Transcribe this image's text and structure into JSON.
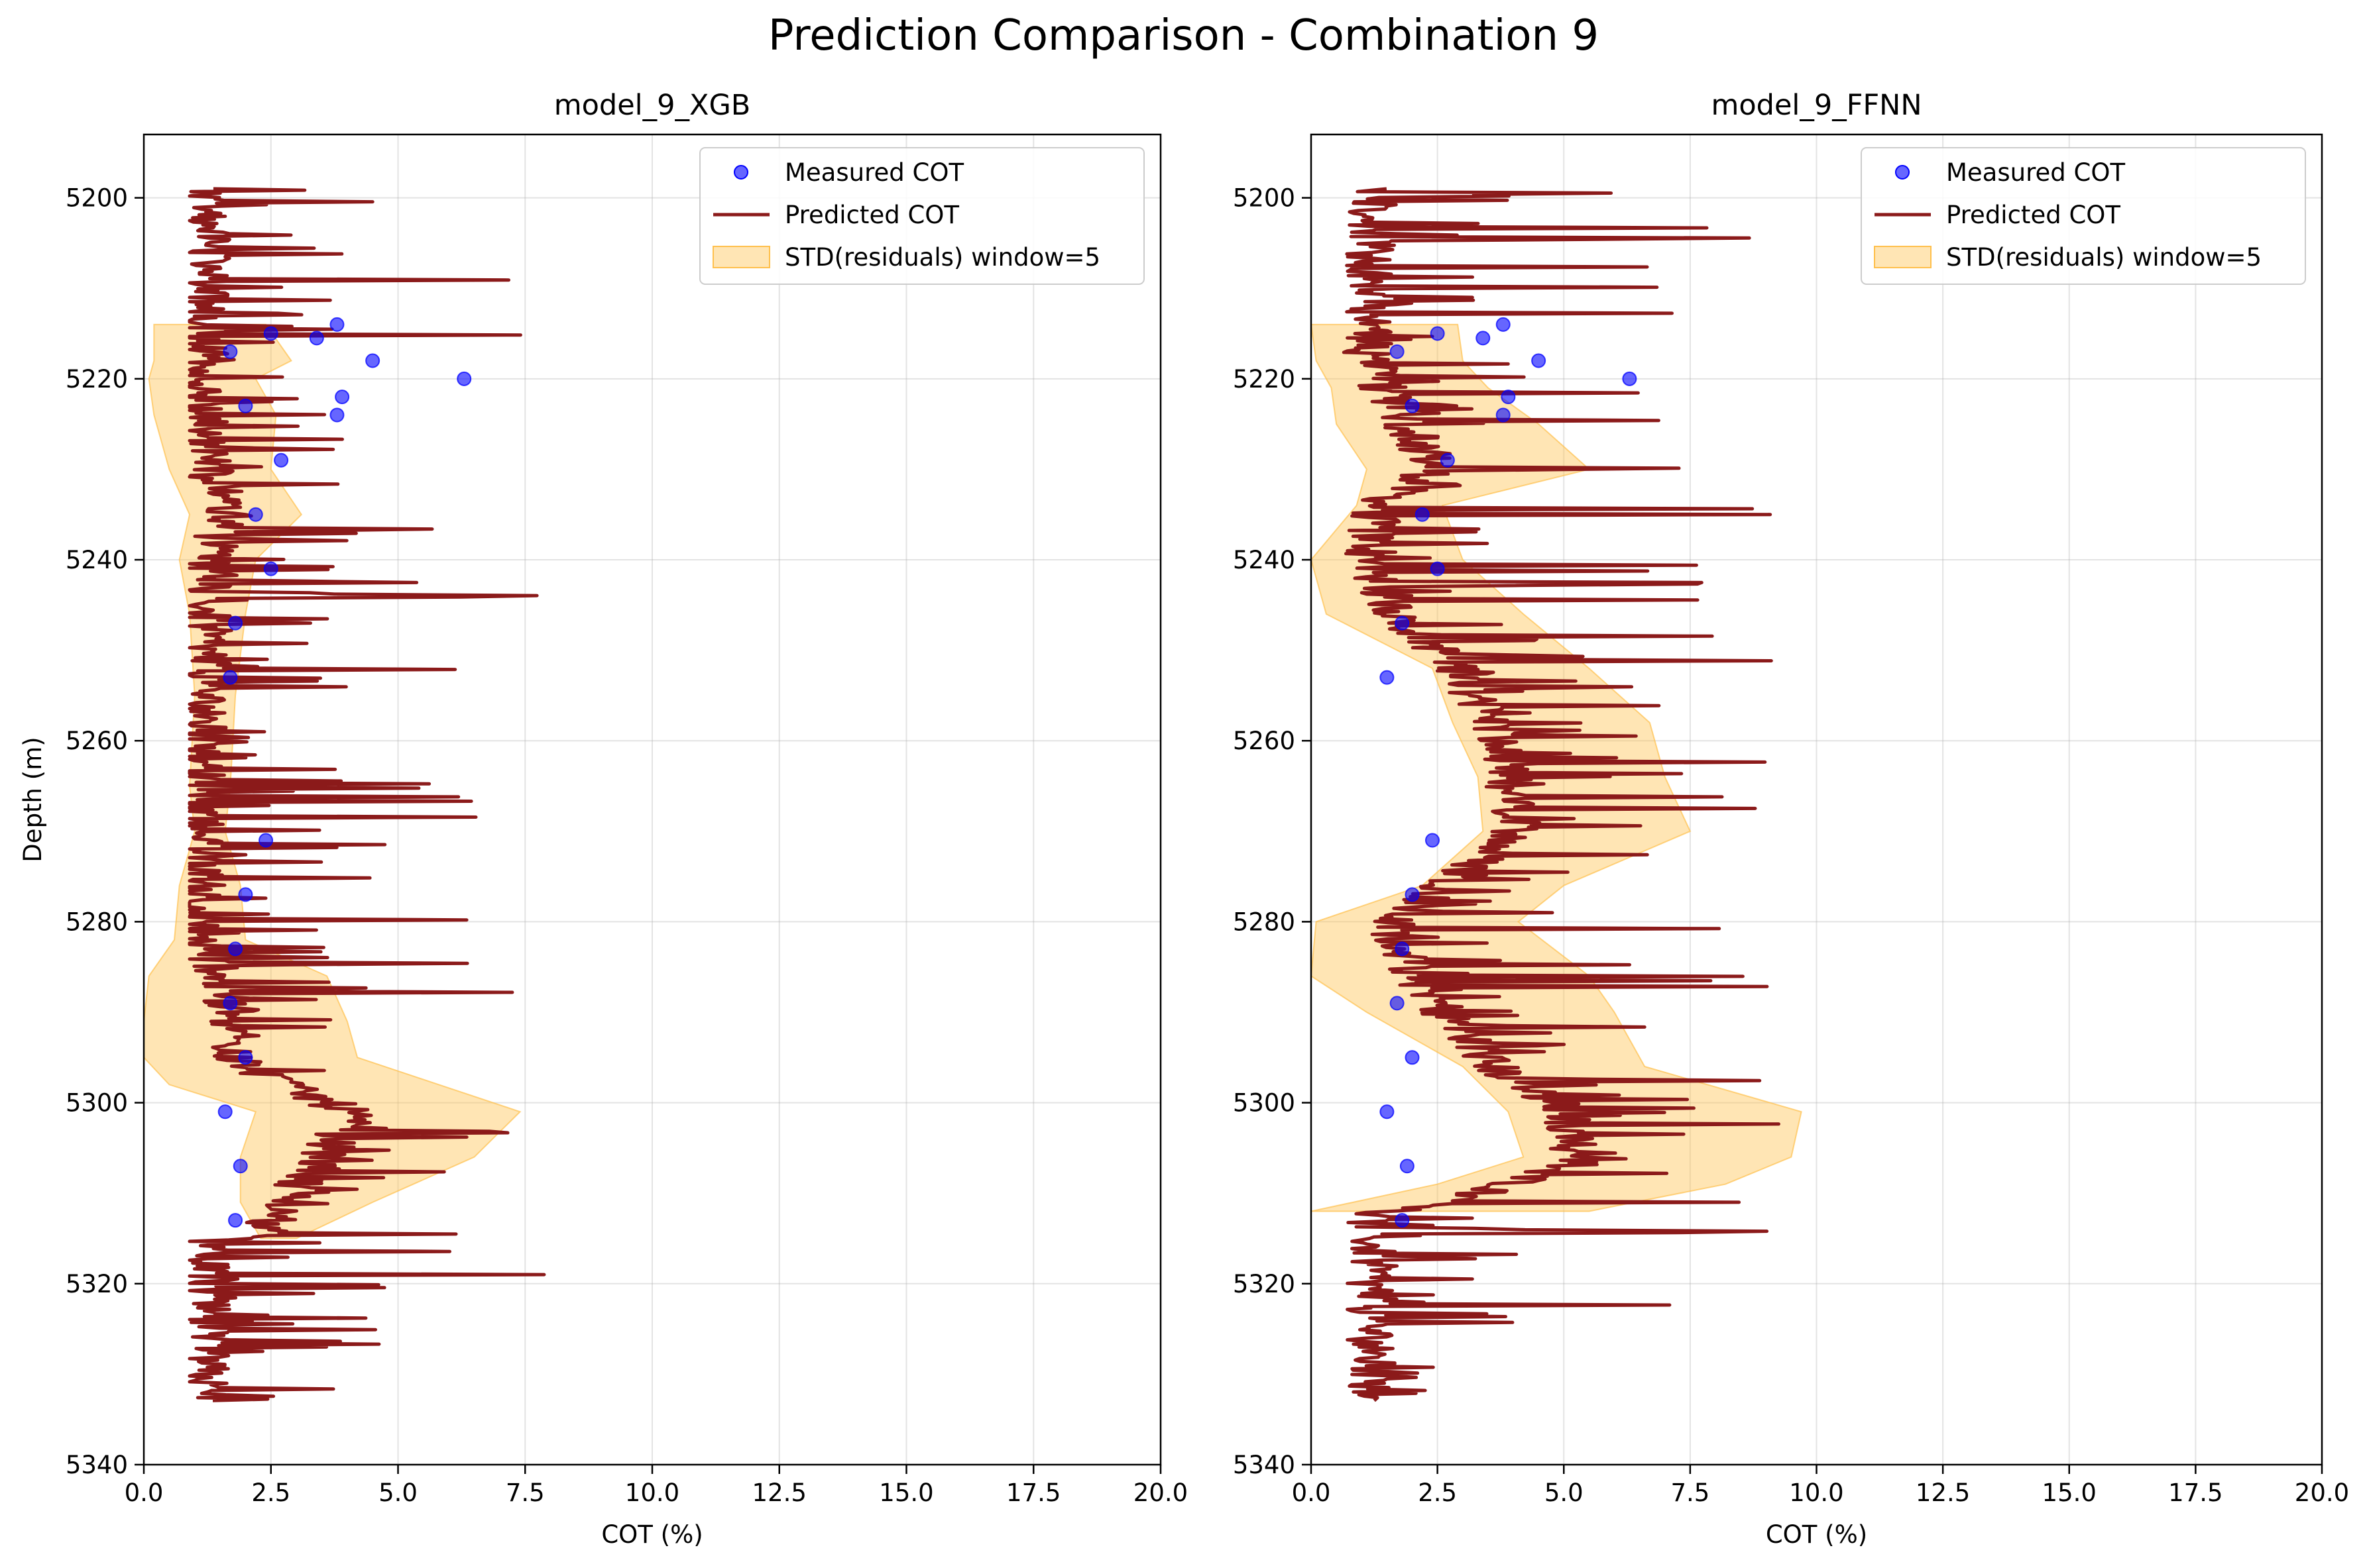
{
  "figure_title": "Prediction Comparison - Combination 9",
  "chart_data": [
    {
      "type": "line",
      "title": "model_9_XGB",
      "xlabel": "COT (%)",
      "ylabel": "Depth (m)",
      "xlim": [
        0,
        20
      ],
      "ylim": [
        5340,
        5193
      ],
      "y_inverted": true,
      "grid": true,
      "legend_position": "upper right",
      "x_ticks": [
        "0.0",
        "2.5",
        "5.0",
        "7.5",
        "10.0",
        "12.5",
        "15.0",
        "17.5",
        "20.0"
      ],
      "y_ticks": [
        "5200",
        "5220",
        "5240",
        "5260",
        "5280",
        "5300",
        "5320",
        "5340"
      ],
      "legend": [
        "Measured COT",
        "Predicted COT",
        "STD(residuals) window=5"
      ],
      "colors": {
        "measured": "#0000ff",
        "predicted": "#8b1a1a",
        "band": "#ffc04d"
      },
      "measured": [
        {
          "x": 2.5,
          "y": 5215
        },
        {
          "x": 3.4,
          "y": 5215.5
        },
        {
          "x": 3.8,
          "y": 5214
        },
        {
          "x": 1.7,
          "y": 5217
        },
        {
          "x": 4.5,
          "y": 5218
        },
        {
          "x": 6.3,
          "y": 5220
        },
        {
          "x": 3.9,
          "y": 5222
        },
        {
          "x": 2.0,
          "y": 5223
        },
        {
          "x": 3.8,
          "y": 5224
        },
        {
          "x": 2.7,
          "y": 5229
        },
        {
          "x": 2.2,
          "y": 5235
        },
        {
          "x": 2.5,
          "y": 5241
        },
        {
          "x": 1.8,
          "y": 5247
        },
        {
          "x": 1.7,
          "y": 5253
        },
        {
          "x": 2.4,
          "y": 5271
        },
        {
          "x": 2.0,
          "y": 5277
        },
        {
          "x": 1.8,
          "y": 5283
        },
        {
          "x": 1.7,
          "y": 5289
        },
        {
          "x": 2.0,
          "y": 5295
        },
        {
          "x": 1.6,
          "y": 5301
        },
        {
          "x": 1.9,
          "y": 5307
        },
        {
          "x": 1.8,
          "y": 5313
        }
      ],
      "predicted_depth_range": [
        5199,
        5333
      ],
      "predicted_x_range": [
        0.9,
        8.3
      ],
      "band": [
        {
          "y": 5214,
          "lo": 0.2,
          "hi": 2.4
        },
        {
          "y": 5218,
          "lo": 0.2,
          "hi": 2.9
        },
        {
          "y": 5220,
          "lo": 0.1,
          "hi": 2.2
        },
        {
          "y": 5224,
          "lo": 0.2,
          "hi": 2.6
        },
        {
          "y": 5230,
          "lo": 0.5,
          "hi": 2.5
        },
        {
          "y": 5235,
          "lo": 0.9,
          "hi": 3.1
        },
        {
          "y": 5240,
          "lo": 0.7,
          "hi": 2.2
        },
        {
          "y": 5246,
          "lo": 0.9,
          "hi": 2.0
        },
        {
          "y": 5255,
          "lo": 1.0,
          "hi": 1.8
        },
        {
          "y": 5265,
          "lo": 0.9,
          "hi": 1.7
        },
        {
          "y": 5270,
          "lo": 1.0,
          "hi": 1.6
        },
        {
          "y": 5276,
          "lo": 0.7,
          "hi": 1.9
        },
        {
          "y": 5282,
          "lo": 0.6,
          "hi": 2.0
        },
        {
          "y": 5286,
          "lo": 0.1,
          "hi": 3.6
        },
        {
          "y": 5291,
          "lo": 0.0,
          "hi": 4.0
        },
        {
          "y": 5295,
          "lo": 0.0,
          "hi": 4.2
        },
        {
          "y": 5298,
          "lo": 0.5,
          "hi": 5.8
        },
        {
          "y": 5301,
          "lo": 2.2,
          "hi": 7.4
        },
        {
          "y": 5306,
          "lo": 1.9,
          "hi": 6.5
        },
        {
          "y": 5311,
          "lo": 1.9,
          "hi": 4.5
        },
        {
          "y": 5315,
          "lo": 2.3,
          "hi": 3.0
        }
      ]
    },
    {
      "type": "line",
      "title": "model_9_FFNN",
      "xlabel": "COT (%)",
      "ylabel": "",
      "xlim": [
        0,
        20
      ],
      "ylim": [
        5340,
        5193
      ],
      "y_inverted": true,
      "grid": true,
      "legend_position": "upper right",
      "x_ticks": [
        "0.0",
        "2.5",
        "5.0",
        "7.5",
        "10.0",
        "12.5",
        "15.0",
        "17.5",
        "20.0"
      ],
      "y_ticks": [
        "5200",
        "5220",
        "5240",
        "5260",
        "5280",
        "5300",
        "5320",
        "5340"
      ],
      "legend": [
        "Measured COT",
        "Predicted COT",
        "STD(residuals) window=5"
      ],
      "colors": {
        "measured": "#0000ff",
        "predicted": "#8b1a1a",
        "band": "#ffc04d"
      },
      "measured": [
        {
          "x": 2.5,
          "y": 5215
        },
        {
          "x": 3.4,
          "y": 5215.5
        },
        {
          "x": 3.8,
          "y": 5214
        },
        {
          "x": 1.7,
          "y": 5217
        },
        {
          "x": 4.5,
          "y": 5218
        },
        {
          "x": 6.3,
          "y": 5220
        },
        {
          "x": 3.9,
          "y": 5222
        },
        {
          "x": 2.0,
          "y": 5223
        },
        {
          "x": 3.8,
          "y": 5224
        },
        {
          "x": 2.7,
          "y": 5229
        },
        {
          "x": 2.2,
          "y": 5235
        },
        {
          "x": 2.5,
          "y": 5241
        },
        {
          "x": 1.8,
          "y": 5247
        },
        {
          "x": 1.5,
          "y": 5253
        },
        {
          "x": 2.4,
          "y": 5271
        },
        {
          "x": 2.0,
          "y": 5277
        },
        {
          "x": 1.8,
          "y": 5283
        },
        {
          "x": 1.7,
          "y": 5289
        },
        {
          "x": 2.0,
          "y": 5295
        },
        {
          "x": 1.5,
          "y": 5301
        },
        {
          "x": 1.9,
          "y": 5307
        },
        {
          "x": 1.8,
          "y": 5313
        }
      ],
      "predicted_depth_range": [
        5199,
        5333
      ],
      "predicted_x_range": [
        0.0,
        9.7
      ],
      "band": [
        {
          "y": 5214,
          "lo": 0.0,
          "hi": 2.9
        },
        {
          "y": 5218,
          "lo": 0.1,
          "hi": 3.0
        },
        {
          "y": 5221,
          "lo": 0.4,
          "hi": 3.5
        },
        {
          "y": 5225,
          "lo": 0.5,
          "hi": 4.5
        },
        {
          "y": 5230,
          "lo": 1.1,
          "hi": 5.5
        },
        {
          "y": 5234,
          "lo": 0.9,
          "hi": 2.6
        },
        {
          "y": 5240,
          "lo": 0.0,
          "hi": 3.0
        },
        {
          "y": 5246,
          "lo": 0.3,
          "hi": 4.2
        },
        {
          "y": 5252,
          "lo": 2.4,
          "hi": 5.5
        },
        {
          "y": 5258,
          "lo": 2.8,
          "hi": 6.7
        },
        {
          "y": 5264,
          "lo": 3.3,
          "hi": 7.0
        },
        {
          "y": 5270,
          "lo": 3.4,
          "hi": 7.5
        },
        {
          "y": 5276,
          "lo": 2.2,
          "hi": 5.0
        },
        {
          "y": 5280,
          "lo": 0.1,
          "hi": 4.1
        },
        {
          "y": 5286,
          "lo": 0.0,
          "hi": 5.5
        },
        {
          "y": 5290,
          "lo": 1.1,
          "hi": 6.0
        },
        {
          "y": 5296,
          "lo": 3.0,
          "hi": 6.6
        },
        {
          "y": 5301,
          "lo": 3.9,
          "hi": 9.7
        },
        {
          "y": 5306,
          "lo": 4.2,
          "hi": 9.5
        },
        {
          "y": 5309,
          "lo": 2.5,
          "hi": 8.2
        },
        {
          "y": 5312,
          "lo": 0.0,
          "hi": 5.5
        }
      ]
    }
  ]
}
